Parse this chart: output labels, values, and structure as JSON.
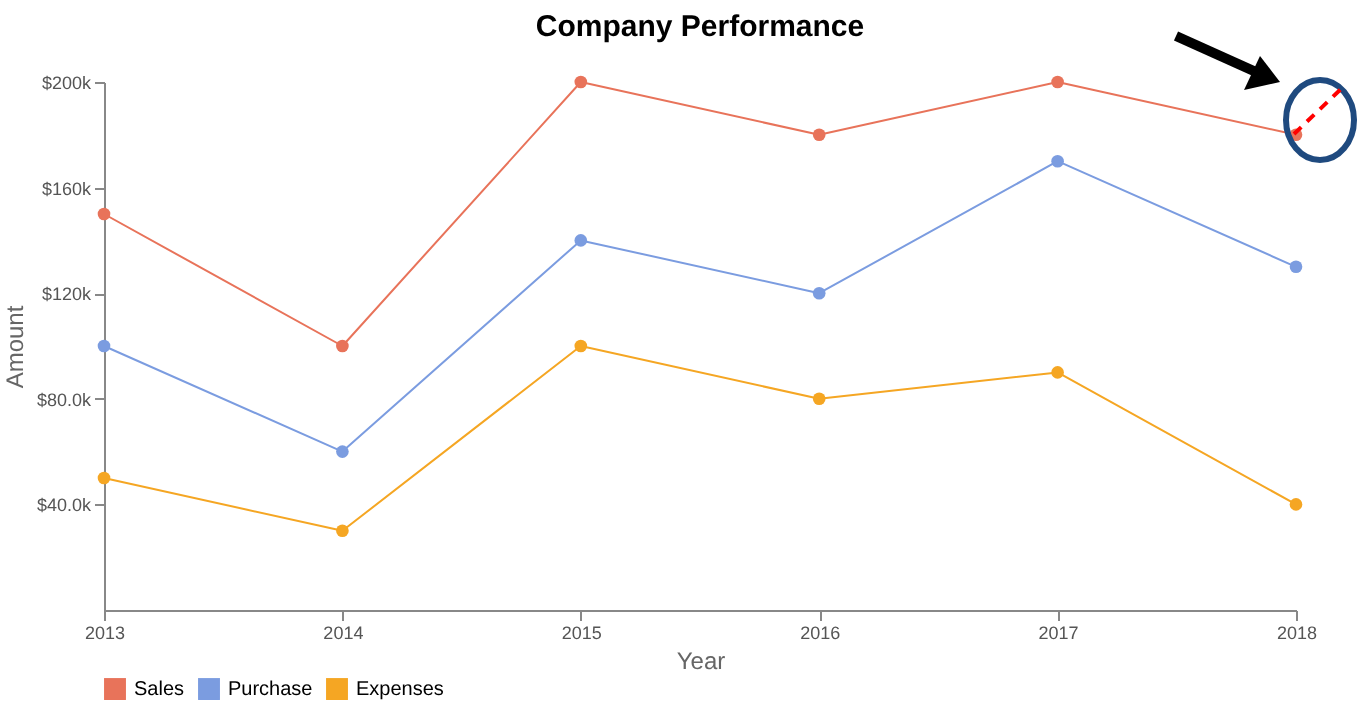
{
  "chart_data": {
    "type": "line",
    "title": "Company Performance",
    "xlabel": "Year",
    "ylabel": "Amount",
    "categories": [
      "2013",
      "2014",
      "2015",
      "2016",
      "2017",
      "2018"
    ],
    "series": [
      {
        "name": "Sales",
        "color": "#e8735a",
        "values": [
          150000,
          100000,
          200000,
          180000,
          200000,
          180000
        ]
      },
      {
        "name": "Purchase",
        "color": "#7b9ce0",
        "values": [
          100000,
          60000,
          140000,
          120000,
          170000,
          130000
        ]
      },
      {
        "name": "Expenses",
        "color": "#f5a623",
        "values": [
          50000,
          30000,
          100000,
          80000,
          90000,
          40000
        ]
      }
    ],
    "ylim": [
      0,
      200000
    ],
    "yticks": [
      {
        "value": 40000,
        "label": "$40.0k"
      },
      {
        "value": 80000,
        "label": "$80.0k"
      },
      {
        "value": 120000,
        "label": "$120k"
      },
      {
        "value": 160000,
        "label": "$160k"
      },
      {
        "value": 200000,
        "label": "$200k"
      }
    ],
    "grid": false,
    "legend": "bottom left",
    "marker": "circle",
    "line_style": "solid"
  }
}
